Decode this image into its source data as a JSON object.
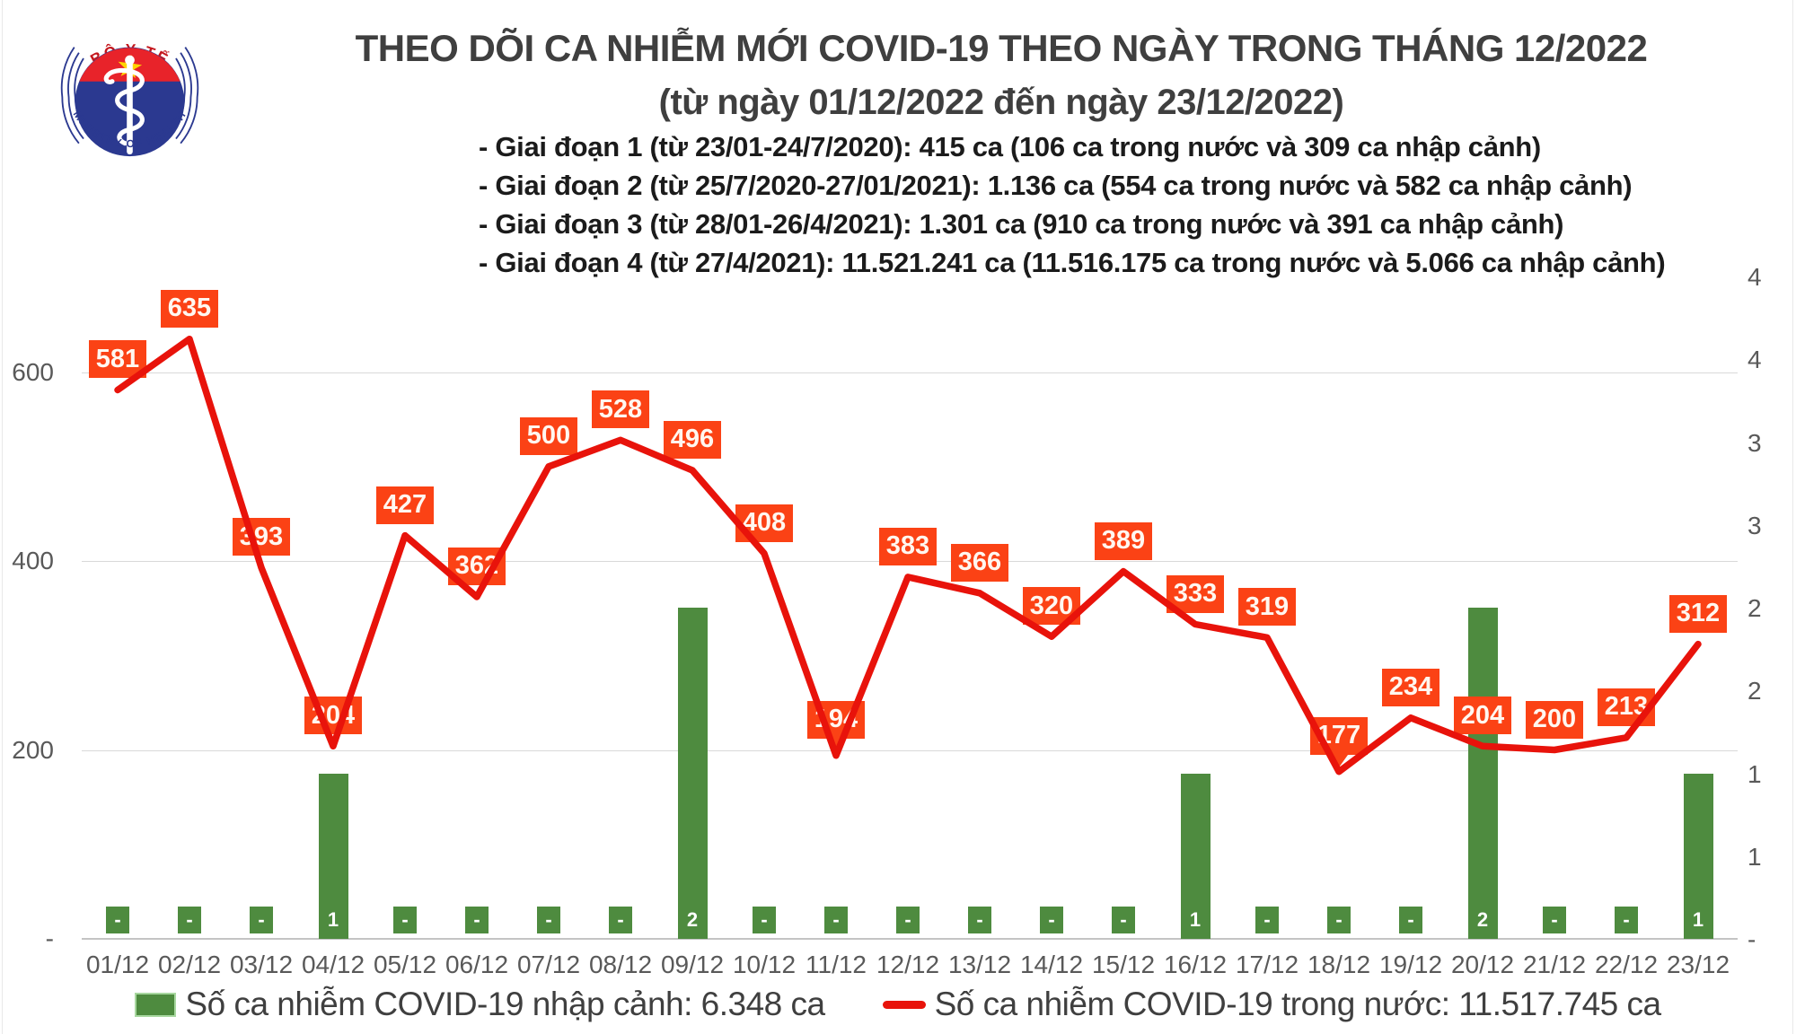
{
  "header": {
    "logo": {
      "top_text": "BỘ Y TẾ",
      "bottom_text": "MINISTRY OF HEALTH"
    },
    "title": "THEO DÕI CA NHIỄM MỚI COVID-19 THEO NGÀY TRONG THÁNG 12/2022",
    "subtitle": "(từ ngày 01/12/2022 đến ngày 23/12/2022)",
    "notes": [
      "- Giai đoạn 1 (từ 23/01-24/7/2020): 415 ca (106 ca trong nước và 309 ca nhập cảnh)",
      "- Giai đoạn 2 (từ 25/7/2020-27/01/2021): 1.136 ca (554 ca trong nước và 582 ca nhập cảnh)",
      "- Giai đoạn 3 (từ 28/01-26/4/2021): 1.301 ca (910 ca trong nước và 391 ca nhập cảnh)",
      "- Giai đoạn 4 (từ 27/4/2021): 11.521.241 ca (11.516.175 ca trong nước và 5.066 ca nhập cảnh)"
    ]
  },
  "chart_data": {
    "type": "combo",
    "categories": [
      "01/12",
      "02/12",
      "03/12",
      "04/12",
      "05/12",
      "06/12",
      "07/12",
      "08/12",
      "09/12",
      "10/12",
      "11/12",
      "12/12",
      "13/12",
      "14/12",
      "15/12",
      "16/12",
      "17/12",
      "18/12",
      "19/12",
      "20/12",
      "21/12",
      "22/12",
      "23/12"
    ],
    "series": [
      {
        "name": "Số ca nhiễm COVID-19 nhập cảnh",
        "type": "bar",
        "color": "#4E8B3F",
        "values": [
          0,
          0,
          0,
          1,
          0,
          0,
          0,
          0,
          2,
          0,
          0,
          0,
          0,
          0,
          0,
          1,
          0,
          0,
          0,
          2,
          0,
          0,
          1
        ],
        "labels": [
          "-",
          "-",
          "-",
          "1",
          "-",
          "-",
          "-",
          "-",
          "2",
          "-",
          "-",
          "-",
          "-",
          "-",
          "-",
          "1",
          "-",
          "-",
          "-",
          "2",
          "-",
          "-",
          "1"
        ]
      },
      {
        "name": "Số ca nhiễm COVID-19 trong nước",
        "type": "line",
        "color": "#E8130B",
        "label_box_color": "#FB4215",
        "values": [
          581,
          635,
          393,
          204,
          427,
          362,
          500,
          528,
          496,
          408,
          194,
          383,
          366,
          320,
          389,
          333,
          319,
          177,
          234,
          204,
          200,
          213,
          312
        ]
      }
    ],
    "left_axis": {
      "tick_labels": [
        "600",
        "400",
        "200",
        "-"
      ],
      "tick_values": [
        600,
        400,
        200,
        0
      ],
      "max": 600
    },
    "right_axis": {
      "tick_labels": [
        "4",
        "4",
        "3",
        "3",
        "2",
        "2",
        "1",
        "1",
        "-"
      ],
      "tick_values": [
        4,
        3.5,
        3,
        2.5,
        2,
        1.5,
        1,
        0.5,
        0
      ],
      "max": 4
    },
    "grid": true,
    "legend_position": "bottom",
    "callout_label_indices": [
      10,
      17
    ],
    "xlabel": "",
    "ylabel": ""
  },
  "legend": {
    "items": [
      {
        "swatch": "bar",
        "color": "#4E8B3F",
        "label": "Số ca nhiễm COVID-19 nhập cảnh: 6.348 ca"
      },
      {
        "swatch": "line",
        "color": "#E8130B",
        "label": "Số ca nhiễm COVID-19 trong nước: 11.517.745 ca"
      }
    ]
  },
  "colors": {
    "line_red": "#E8130B",
    "label_box_red": "#FB4215",
    "bar_green": "#4E8B3F",
    "legend_swatch_border": "#A8D8A0",
    "axis_text": "#595959",
    "gridline": "#D9D9D9",
    "title_text": "#3F3F3F"
  }
}
